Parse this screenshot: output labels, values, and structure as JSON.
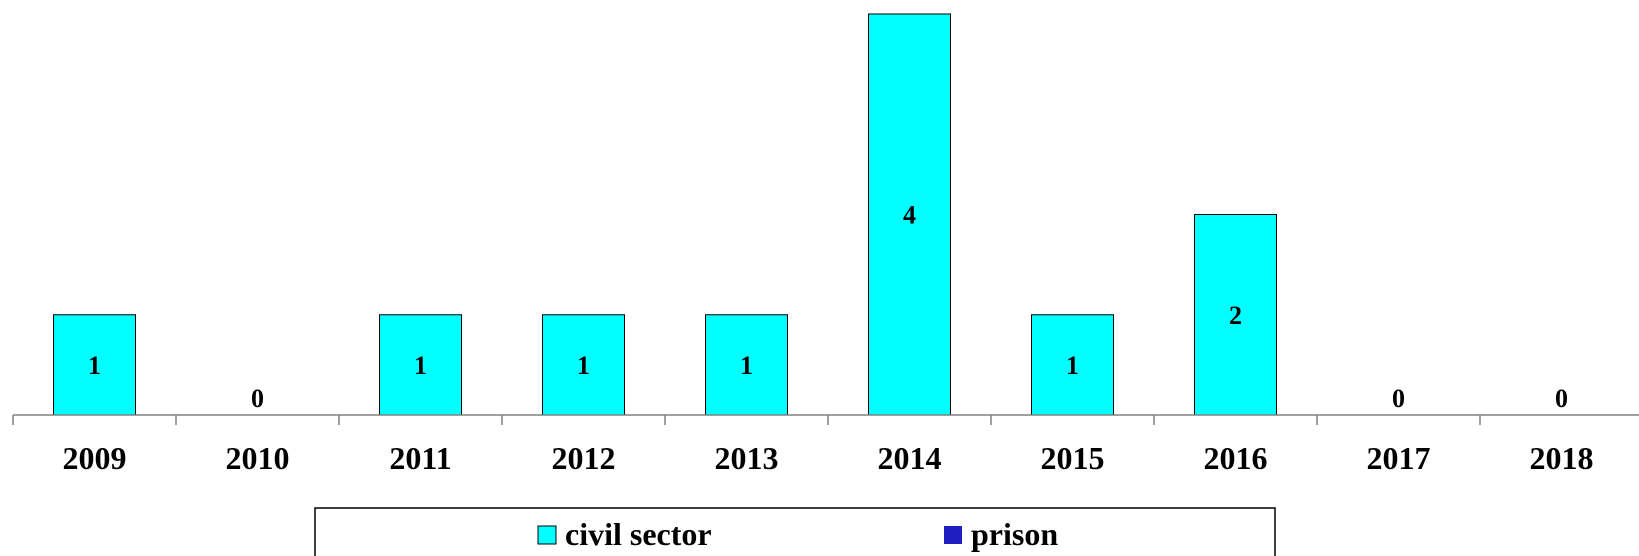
{
  "chart_data": {
    "type": "bar",
    "categories": [
      "2009",
      "2010",
      "2011",
      "2012",
      "2013",
      "2014",
      "2015",
      "2016",
      "2017",
      "2018"
    ],
    "series": [
      {
        "name": "civil sector",
        "color": "#00FFFF",
        "values": [
          1,
          0,
          1,
          1,
          1,
          4,
          1,
          2,
          0,
          0
        ]
      },
      {
        "name": "prison",
        "color": "#1F1FBF",
        "values": [
          0,
          0,
          0,
          0,
          0,
          0,
          0,
          0,
          0,
          0
        ]
      }
    ],
    "data_labels": [
      "1",
      "0",
      "1",
      "1",
      "1",
      "4",
      "1",
      "2",
      "0",
      "0"
    ],
    "ylim": [
      0,
      4
    ],
    "grid": false,
    "legend_position": "bottom"
  }
}
